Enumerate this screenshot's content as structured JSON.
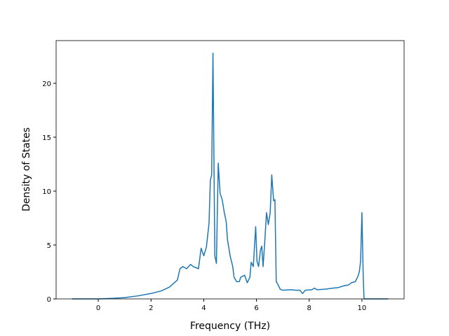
{
  "chart_data": {
    "type": "line",
    "xlabel": "Frequency (THz)",
    "ylabel": "Density of States",
    "x": [
      -1,
      0,
      0.5,
      1,
      1.5,
      2,
      2.4,
      2.7,
      3.0,
      3.1,
      3.2,
      3.35,
      3.5,
      3.6,
      3.8,
      3.9,
      4.0,
      4.1,
      4.2,
      4.25,
      4.3,
      4.35,
      4.42,
      4.48,
      4.55,
      4.62,
      4.7,
      4.78,
      4.85,
      4.9,
      5.0,
      5.1,
      5.15,
      5.25,
      5.35,
      5.4,
      5.55,
      5.65,
      5.75,
      5.8,
      5.88,
      5.97,
      6.02,
      6.08,
      6.15,
      6.2,
      6.25,
      6.32,
      6.38,
      6.45,
      6.52,
      6.58,
      6.65,
      6.7,
      6.75,
      6.8,
      6.9,
      7.0,
      7.3,
      7.5,
      7.65,
      7.75,
      7.85,
      8.1,
      8.2,
      8.3,
      8.6,
      8.9,
      9.1,
      9.3,
      9.5,
      9.6,
      9.75,
      9.85,
      9.9,
      9.95,
      10.0,
      10.05,
      10.08,
      11
    ],
    "series": [
      {
        "name": "DOS",
        "color": "#1f77b4",
        "values": [
          0,
          0,
          0.05,
          0.12,
          0.28,
          0.5,
          0.75,
          1.1,
          1.75,
          2.8,
          3.0,
          2.8,
          3.2,
          3.0,
          2.8,
          4.7,
          4.0,
          4.8,
          7.0,
          11,
          11.5,
          22.8,
          4.0,
          3.3,
          12.6,
          9.8,
          9.2,
          8.0,
          7.2,
          5.5,
          4.0,
          3.0,
          2.0,
          1.6,
          1.6,
          2.0,
          2.2,
          1.5,
          2.0,
          3.4,
          3.0,
          6.7,
          3.5,
          3.0,
          4.5,
          4.9,
          3.0,
          5.5,
          8.0,
          6.9,
          8.0,
          11.5,
          9.1,
          9.2,
          1.6,
          1.4,
          0.9,
          0.8,
          0.85,
          0.8,
          0.8,
          0.5,
          0.8,
          0.85,
          1.0,
          0.85,
          0.9,
          1.0,
          1.05,
          1.2,
          1.3,
          1.5,
          1.6,
          2.1,
          2.5,
          3.5,
          8.0,
          2.0,
          0,
          0
        ]
      }
    ],
    "xlim": [
      -1.6,
      11.6
    ],
    "xticks": [
      0,
      2,
      4,
      6,
      8,
      10
    ],
    "ylim": [
      0,
      23.96
    ],
    "yticks": [
      0,
      5,
      10,
      15,
      20
    ],
    "grid": false
  }
}
